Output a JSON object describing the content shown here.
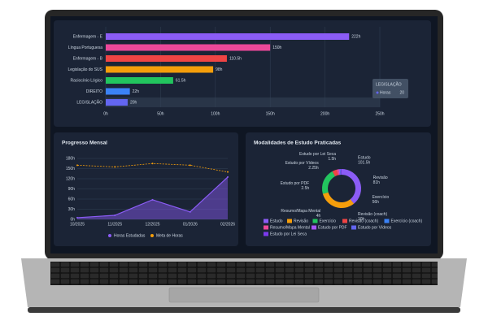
{
  "chart_data": [
    {
      "type": "bar",
      "orientation": "horizontal",
      "categories": [
        "Enfermagem - E",
        "Língua Portuguesa",
        "Enfermagem - B",
        "Legislação do SUS",
        "Raciocínio Lógico",
        "DIREITO",
        "LEGISLAÇÃO"
      ],
      "values": [
        222,
        150,
        110.5,
        98,
        61.5,
        22,
        20
      ],
      "value_labels": [
        "222h",
        "150h",
        "110.5h",
        "98h",
        "61.5h",
        "22h",
        "20h"
      ],
      "colors": [
        "#8b5cf6",
        "#ec4899",
        "#ef4444",
        "#f59e0b",
        "#22c55e",
        "#3b82f6",
        "#6366f1"
      ],
      "xlim": [
        0,
        250
      ],
      "xticks": [
        {
          "value": 0,
          "label": "0h"
        },
        {
          "value": 50,
          "label": "50h"
        },
        {
          "value": 100,
          "label": "100h"
        },
        {
          "value": 150,
          "label": "150h"
        },
        {
          "value": 200,
          "label": "200h"
        },
        {
          "value": 250,
          "label": "250h"
        }
      ],
      "grid": true,
      "tooltip": {
        "title": "LEGISLAÇÃO",
        "label": "Horas",
        "value": 20
      }
    },
    {
      "type": "line",
      "title": "Progresso Mensal",
      "categories": [
        "10/2025",
        "11/2025",
        "12/2025",
        "01/2026",
        "02/2026"
      ],
      "series": [
        {
          "name": "Horas Estudadas",
          "color": "#8b5cf6",
          "area": true,
          "values": [
            5,
            12,
            58,
            22,
            125
          ]
        },
        {
          "name": "Meta de Horas",
          "color": "#f59e0b",
          "dashed": true,
          "values": [
            160,
            155,
            165,
            160,
            140
          ]
        }
      ],
      "ylim": [
        0,
        180
      ],
      "yticks": [
        {
          "value": 0,
          "label": "0h"
        },
        {
          "value": 30,
          "label": "30h"
        },
        {
          "value": 60,
          "label": "60h"
        },
        {
          "value": 90,
          "label": "90h"
        },
        {
          "value": 120,
          "label": "120h"
        },
        {
          "value": 150,
          "label": "150h"
        },
        {
          "value": 180,
          "label": "180h"
        }
      ],
      "grid": true,
      "legend": "bottom"
    },
    {
      "type": "pie",
      "title": "Modalidades de Estudo Praticadas",
      "donut": true,
      "categories": [
        "Estudo",
        "Revisão",
        "Exercício",
        "Revisão (coach)",
        "Exercício (coach)",
        "Resumo/Mapa Mental",
        "Estudo por PDF",
        "Estudo por Vídeos",
        "Estudo por Lei Seca"
      ],
      "values": [
        101.5,
        81,
        56,
        10,
        null,
        4,
        2.5,
        2.25,
        1.5
      ],
      "value_labels": [
        "101.5h",
        "81h",
        "56h",
        "10h",
        null,
        "4h",
        "2.5h",
        "2.25h",
        "1.5h"
      ],
      "colors": [
        "#8b5cf6",
        "#f59e0b",
        "#22c55e",
        "#ef4444",
        "#3b82f6",
        "#ec4899",
        "#a855f7",
        "#6366f1",
        "#7c3aed"
      ],
      "legend": "bottom"
    }
  ]
}
